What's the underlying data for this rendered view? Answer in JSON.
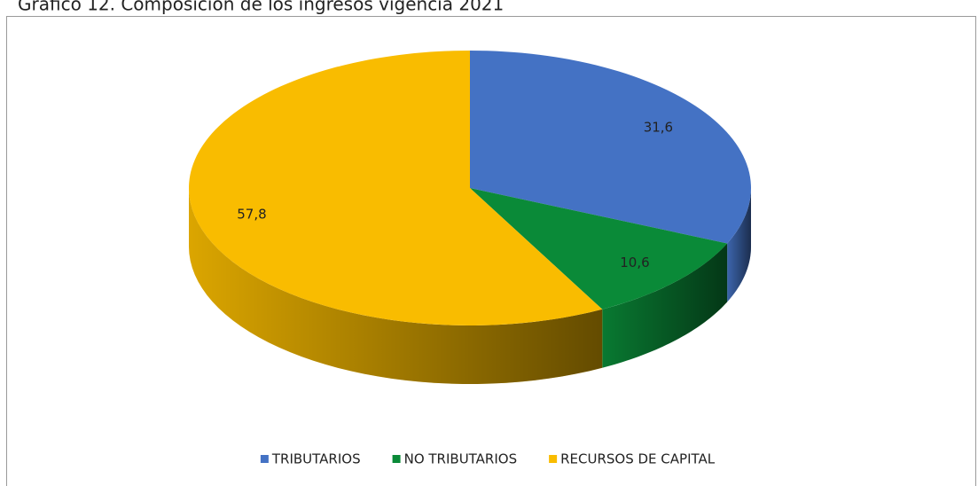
{
  "chart_data": {
    "type": "pie3d",
    "title": "Gráfico 12. Composición de los ingresos vigencia 2021",
    "categories": [
      "TRIBUTARIOS",
      "NO TRIBUTARIOS",
      "RECURSOS DE CAPITAL"
    ],
    "values": [
      31.6,
      10.6,
      57.8
    ],
    "value_labels": [
      "31,6",
      "10,6",
      "57,8"
    ],
    "colors": [
      "#4472c4",
      "#0a8a38",
      "#f9bc00"
    ],
    "legend": "bottom"
  }
}
